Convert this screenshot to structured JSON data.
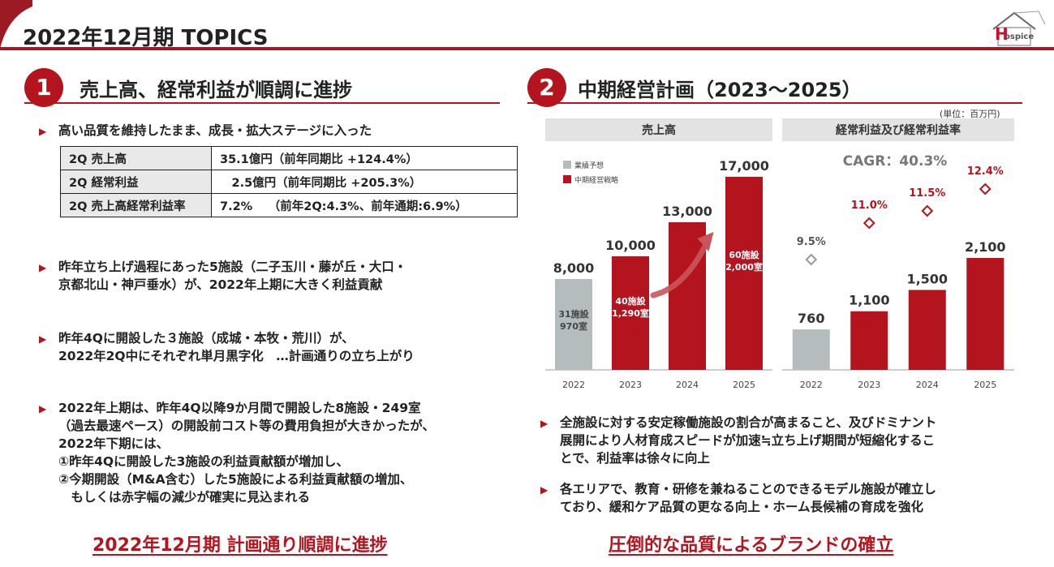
{
  "page": {
    "title": "2022年12月期 TOPICS"
  },
  "logo": {
    "letter": "H",
    "text": "ospice"
  },
  "section1": {
    "number": "1",
    "title": "売上高、経常利益が順調に進捗",
    "bullet1": "高い品質を維持したまま、成長・拡大ステージに入った",
    "table": [
      {
        "key": "2Q 売上高",
        "value": "35.1億円（前年同期比 +124.4%）"
      },
      {
        "key": "2Q 経常利益",
        "value": "　2.5億円（前年同期比 +205.3%）"
      },
      {
        "key": "2Q 売上高経常利益率",
        "value": "7.2%　 （前年2Q:4.3%、前年通期:6.9%）"
      }
    ],
    "bullet2_l1": "昨年立ち上げ過程にあった5施設（二子玉川・藤が丘・大口・",
    "bullet2_l2": "京都北山・神戸垂水）が、2022年上期に大きく利益貢献",
    "bullet3_l1": "昨年4Qに開設した３施設（成城・本牧・荒川）が、",
    "bullet3_l2": "2022年2Q中にそれぞれ単月黒字化　…計画通りの立ち上がり",
    "bullet4_l1": "2022年上期は、昨年4Q以降9か月間で開設した8施設・249室",
    "bullet4_l2": "（過去最速ペース）の開設前コスト等の費用負担が大きかったが、",
    "bullet4_l3": "2022年下期には、",
    "bullet4_l4": "①昨年4Qに開設した3施設の利益貢献額が増加し、",
    "bullet4_l5": "②今期開設（M&A含む）した5施設による利益貢献額の増加、",
    "bullet4_l6": "　もしくは赤字幅の減少が確実に見込まれる",
    "footer": "2022年12月期 計画通り順調に進捗"
  },
  "section2": {
    "number": "2",
    "title": "中期経営計画（2023～2025）",
    "unit": "(単位：百万円)",
    "bullet1_l1": "全施設に対する安定稼働施設の割合が高まること、及びドミナント",
    "bullet1_l2": "展開により人材育成スピードが加速≒立ち上げ期間が短縮化するこ",
    "bullet1_l3": "とで、利益率は徐々に向上",
    "bullet2_l1": "各エリアで、教育・研修を兼ねることのできるモデル施設が確立し",
    "bullet2_l2": "ており、緩和ケア品質の更なる向上・ホーム長候補の育成を強化",
    "footer": "圧倒的な品質によるブランドの確立"
  },
  "chart_data": [
    {
      "type": "bar",
      "title": "売上高",
      "categories": [
        "2022",
        "2023",
        "2024",
        "2025"
      ],
      "values": [
        8000,
        10000,
        13000,
        17000
      ],
      "value_labels": [
        "8,000",
        "10,000",
        "13,000",
        "17,000"
      ],
      "bar_kinds": [
        "forecast",
        "plan",
        "plan",
        "plan"
      ],
      "legend": [
        "業績予想",
        "中期経営戦略"
      ],
      "inner_labels": [
        {
          "index": 0,
          "l1": "31施設",
          "l2": "970室"
        },
        {
          "index": 1,
          "l1": "40施設",
          "l2": "1,290室"
        },
        {
          "index": 3,
          "l1": "60施設",
          "l2": "2,000室"
        }
      ],
      "colors": {
        "forecast": "#b4bcbd",
        "plan": "#b3141e"
      },
      "ylim": [
        0,
        18000
      ]
    },
    {
      "type": "bar",
      "title": "経常利益及び経常利益率",
      "subtitle": "CAGR：40.3%",
      "categories": [
        "2022",
        "2023",
        "2024",
        "2025"
      ],
      "values": [
        760,
        1100,
        1500,
        2100
      ],
      "value_labels": [
        "760",
        "1,100",
        "1,500",
        "2,100"
      ],
      "bar_kinds": [
        "forecast",
        "plan",
        "plan",
        "plan"
      ],
      "margin_rates": [
        9.5,
        11.0,
        11.5,
        12.4
      ],
      "margin_labels": [
        "9.5%",
        "11.0%",
        "11.5%",
        "12.4%"
      ],
      "colors": {
        "forecast": "#b4bcbd",
        "plan": "#b3141e"
      },
      "ylim": [
        0,
        3000
      ]
    }
  ]
}
